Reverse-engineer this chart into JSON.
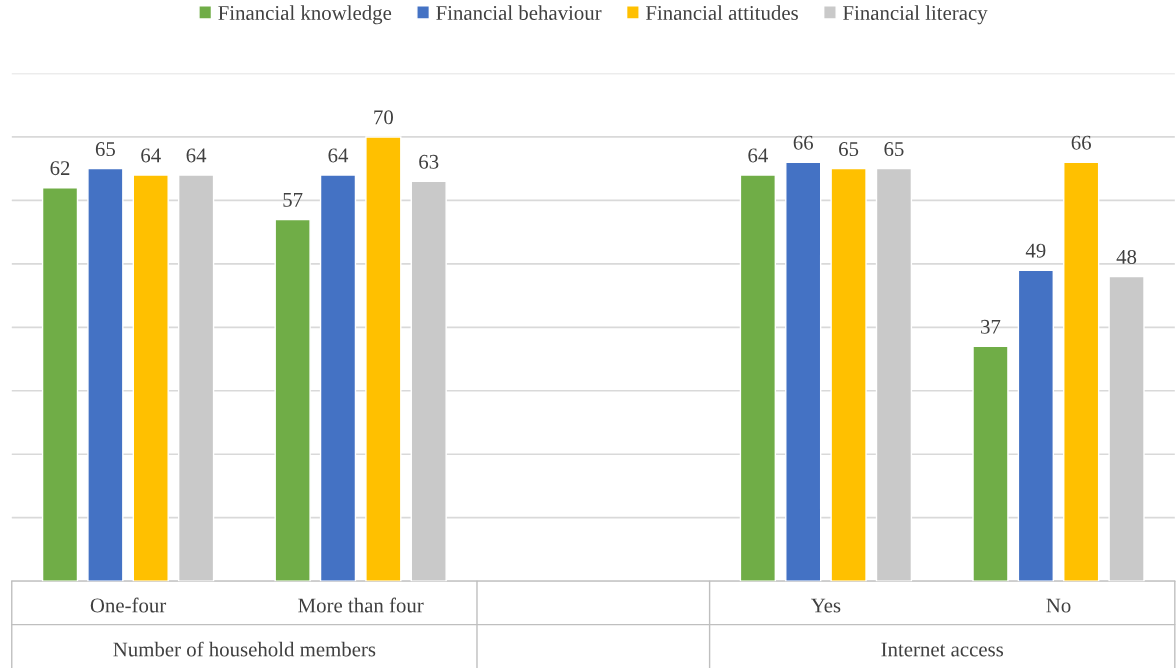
{
  "chart_data": {
    "type": "bar",
    "categories": [
      "One-four",
      "More than four",
      null,
      "Yes",
      "No"
    ],
    "series": [
      {
        "name": "Financial knowledge",
        "color": "#70ad47",
        "values": [
          62,
          57,
          null,
          64,
          37
        ]
      },
      {
        "name": "Financial behaviour",
        "color": "#4472c4",
        "values": [
          65,
          64,
          null,
          66,
          49
        ]
      },
      {
        "name": "Financial attitudes",
        "color": "#ffc000",
        "values": [
          64,
          70,
          null,
          65,
          66
        ]
      },
      {
        "name": "Financial literacy",
        "color": "#c9c9c9",
        "values": [
          64,
          63,
          null,
          65,
          48
        ]
      }
    ],
    "ylim": [
      0,
      80
    ],
    "yticks": [
      {
        "value": 0,
        "label": null
      },
      {
        "value": 10,
        "label": null
      },
      {
        "value": 20,
        "label": null
      },
      {
        "value": 30,
        "label": null
      },
      {
        "value": 40,
        "label": null
      },
      {
        "value": 50,
        "label": null
      },
      {
        "value": 60,
        "label": null
      },
      {
        "value": 70,
        "label": null
      },
      {
        "value": 80,
        "label": null
      }
    ],
    "tick_labels": "x",
    "grid": "y",
    "legend": "top",
    "data_labels": true,
    "annotations": [
      "Number of household members",
      "Internet access"
    ]
  }
}
